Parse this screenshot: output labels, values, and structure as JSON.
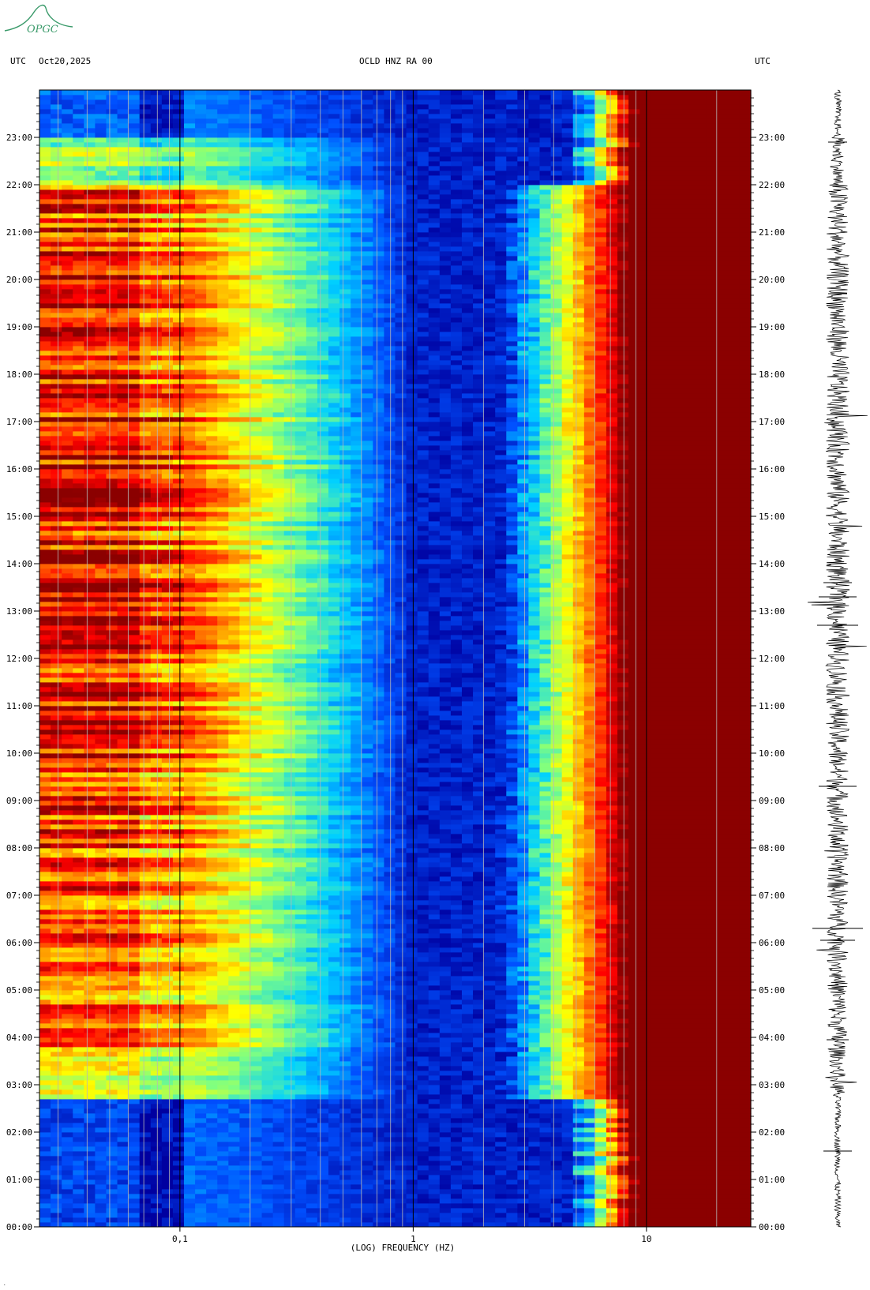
{
  "logo": {
    "text": "OPGC"
  },
  "header": {
    "left_tz": "UTC",
    "date": "Oct20,2025",
    "station": "OCLD HNZ RA 00",
    "right_tz": "UTC"
  },
  "chart_data": {
    "type": "heatmap",
    "title": "OCLD HNZ RA 00",
    "xlabel": "(LOG) FREQUENCY (HZ)",
    "x_scale": "log",
    "xlim": [
      0.025,
      28
    ],
    "x_ticks": [
      {
        "value": 0.1,
        "label": "0,1"
      },
      {
        "value": 1,
        "label": "1"
      },
      {
        "value": 10,
        "label": "10"
      }
    ],
    "ylim_hours": [
      0,
      24
    ],
    "y_ticks": [
      "00:00",
      "01:00",
      "02:00",
      "03:00",
      "04:00",
      "05:00",
      "06:00",
      "07:00",
      "08:00",
      "09:00",
      "10:00",
      "11:00",
      "12:00",
      "13:00",
      "14:00",
      "15:00",
      "16:00",
      "17:00",
      "18:00",
      "19:00",
      "20:00",
      "21:00",
      "22:00",
      "23:00"
    ],
    "colormap": [
      "#0000a0",
      "#0050ff",
      "#00d0ff",
      "#80ff80",
      "#ffff00",
      "#ff8000",
      "#ff0000",
      "#8b0000"
    ],
    "saturated_color": "#8b0000",
    "quiet_periods_utc": [
      "00:00-02:45",
      "23:00-24:00"
    ],
    "notes": "Power spectral density vs time; high energy below 0.1 Hz during daytime, saturation above ~10 Hz."
  }
}
